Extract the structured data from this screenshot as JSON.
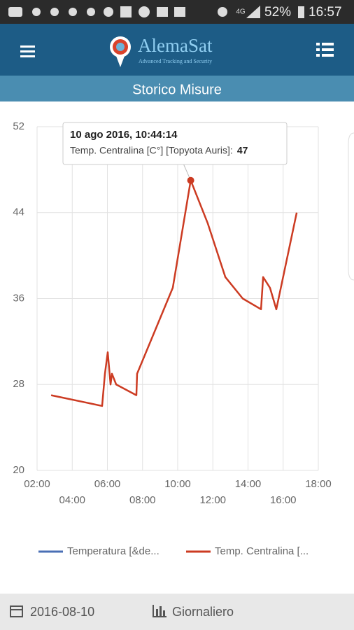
{
  "status_bar": {
    "network": "4G",
    "battery": "52%",
    "time": "16:57"
  },
  "header": {
    "brand": "AlemaSat",
    "tagline": "Advanced Tracking and Security"
  },
  "page_title": "Storico Misure",
  "chart_data": {
    "type": "line",
    "x": [
      2.8,
      5.7,
      5.86,
      6.02,
      6.18,
      6.26,
      6.5,
      7.65,
      7.69,
      9.72,
      10.74,
      11.71,
      12.71,
      13.7,
      14.74,
      14.86,
      15.25,
      15.61,
      16.77
    ],
    "series": [
      {
        "name": "Temperatura [&de...",
        "color": "#4a6fb5",
        "values": [
          null,
          null,
          null,
          null,
          null,
          null,
          null,
          null,
          null,
          null,
          null,
          null,
          null,
          null,
          null,
          null,
          null,
          null,
          null
        ]
      },
      {
        "name": "Temp. Centralina [...",
        "color": "#cc3b22",
        "values": [
          27,
          26,
          29,
          31,
          28,
          29,
          28,
          27,
          29,
          37,
          47,
          43,
          38,
          36,
          35,
          38,
          37,
          35,
          44
        ]
      }
    ],
    "xlim": [
      2,
      18
    ],
    "xticks": [
      {
        "value": 2,
        "label": "02:00"
      },
      {
        "value": 4,
        "label": "04:00"
      },
      {
        "value": 6,
        "label": "06:00"
      },
      {
        "value": 8,
        "label": "08:00"
      },
      {
        "value": 10,
        "label": "10:00"
      },
      {
        "value": 12,
        "label": "12:00"
      },
      {
        "value": 14,
        "label": "14:00"
      },
      {
        "value": 16,
        "label": "16:00"
      },
      {
        "value": 18,
        "label": "18:00"
      }
    ],
    "ylim": [
      20,
      52
    ],
    "yticks": [
      20,
      28,
      36,
      44,
      52
    ],
    "grid": true,
    "tooltip": {
      "title": "10 ago 2016, 10:44:14",
      "label": "Temp. Centralina [C°] [Topyota Auris]:"
    }
  },
  "footer": {
    "date": "2016-08-10",
    "period": "Giornaliero"
  }
}
